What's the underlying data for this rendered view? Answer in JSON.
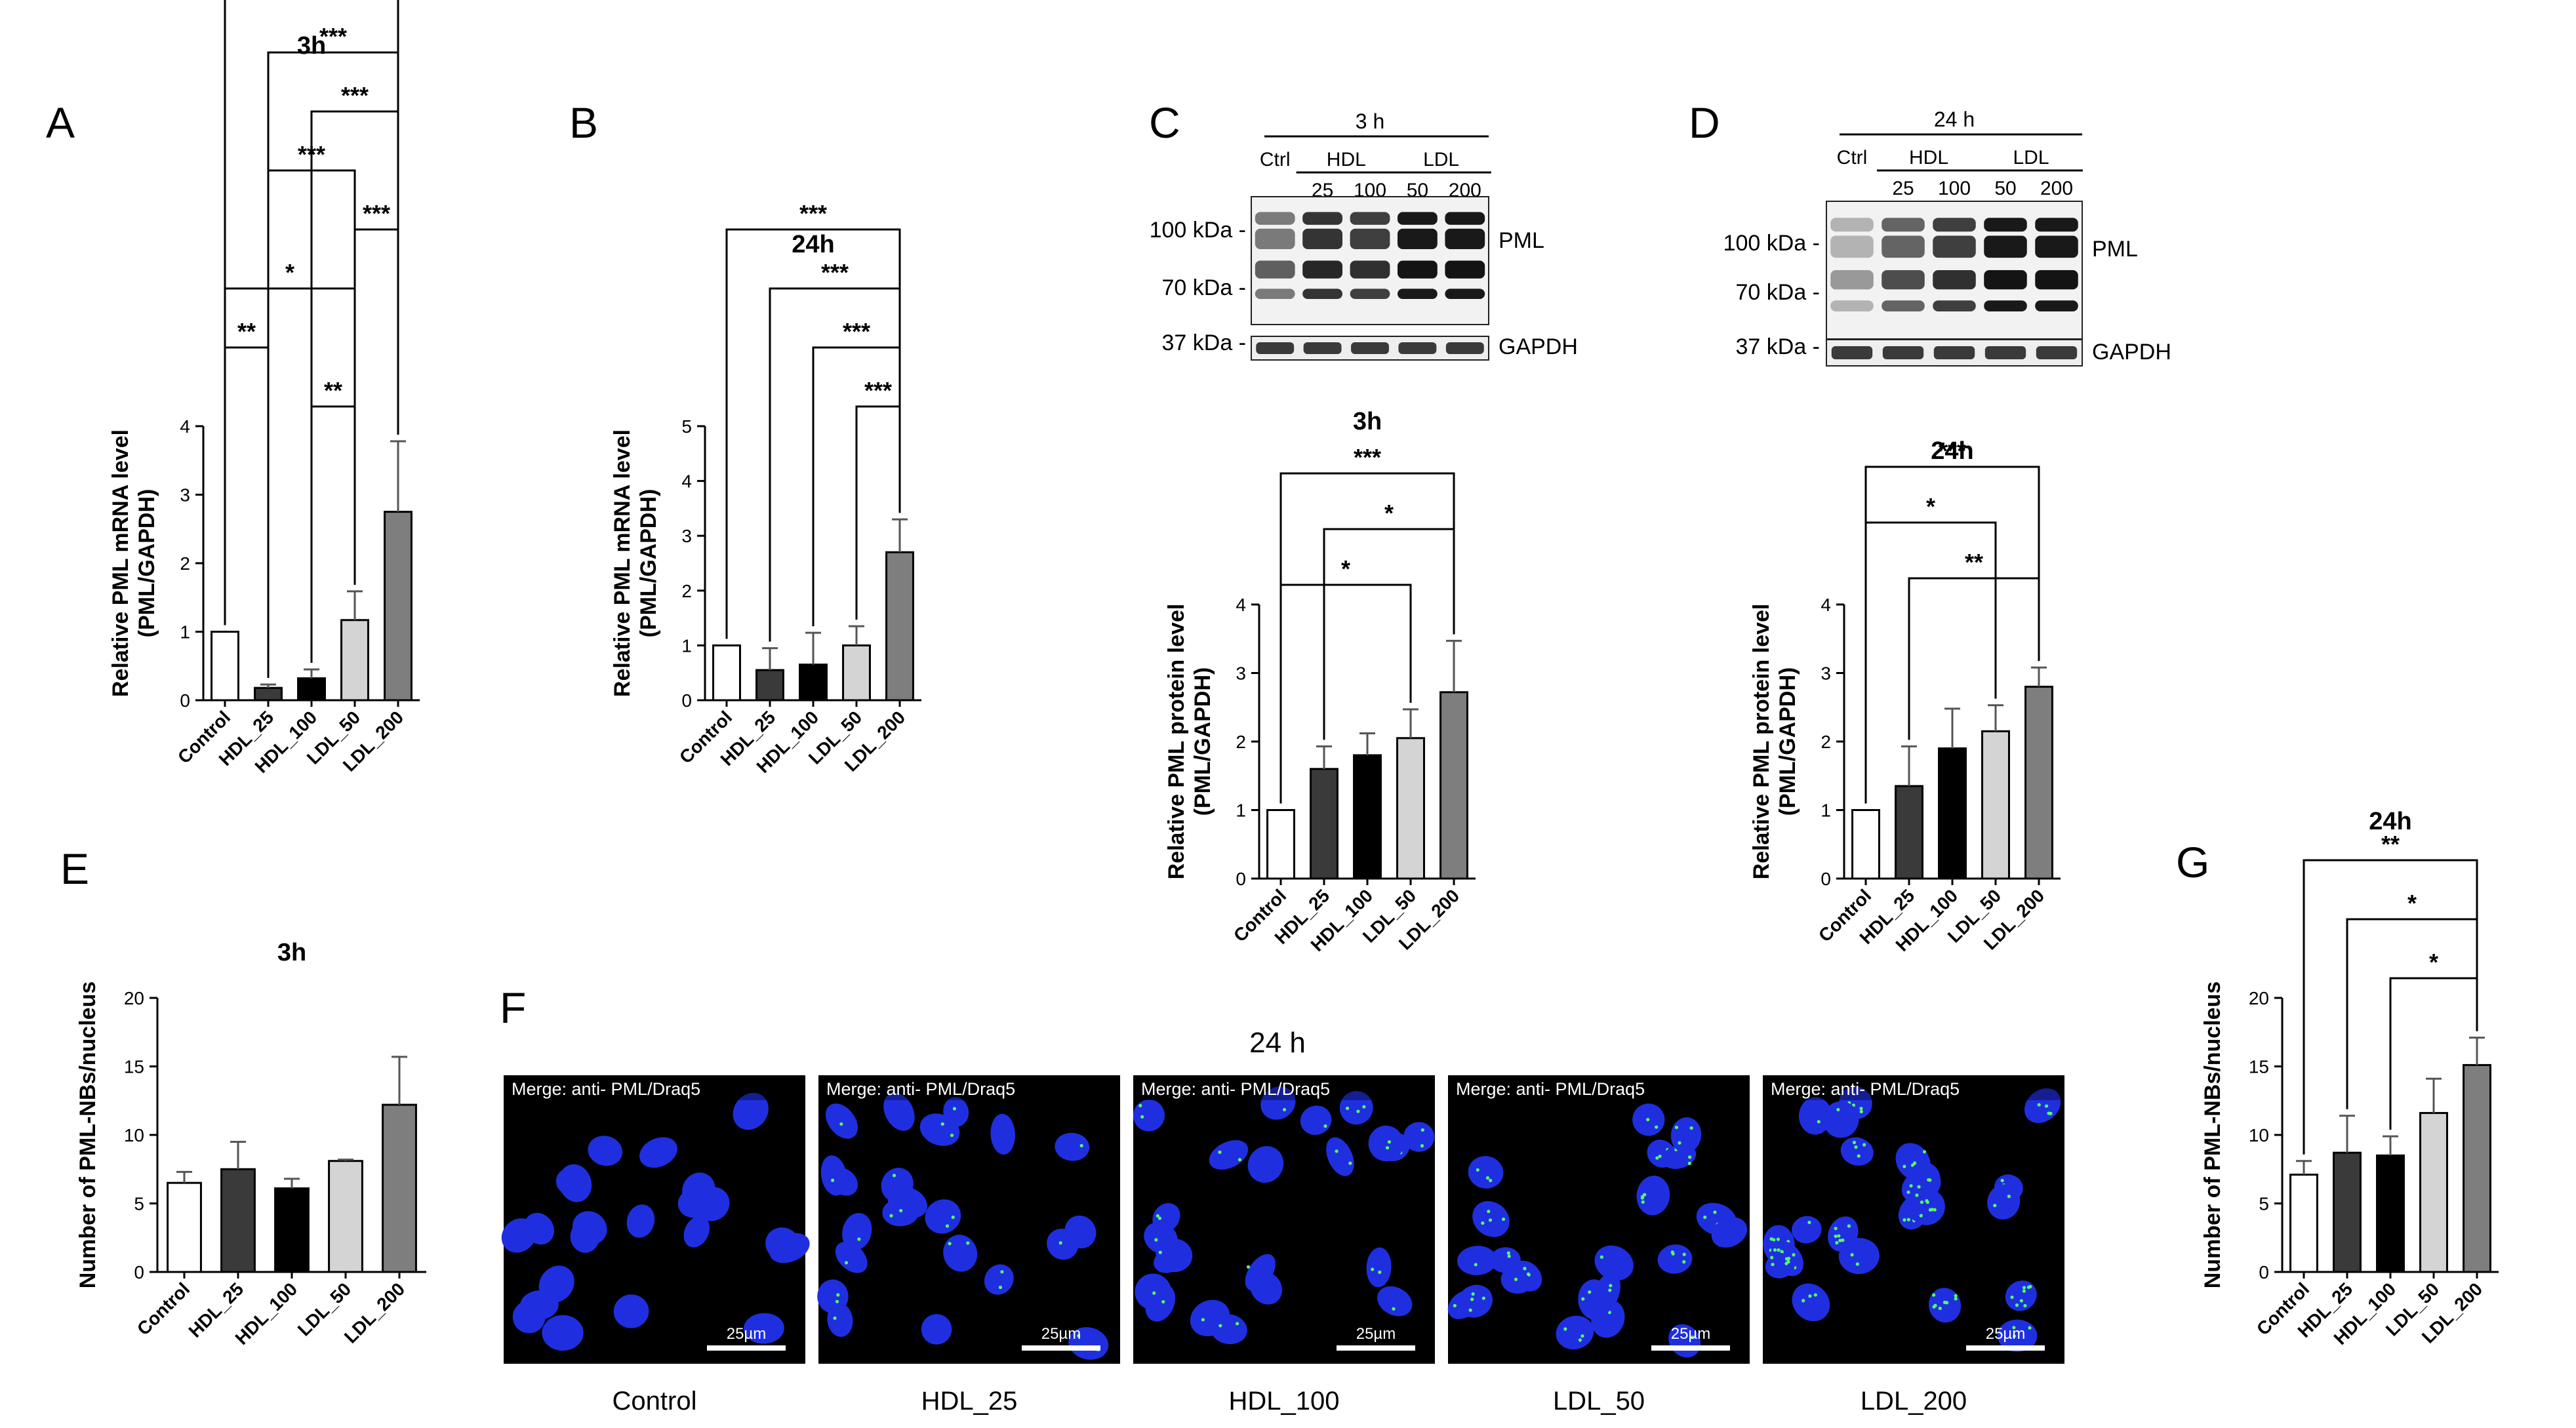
{
  "panel_letters": {
    "A": "A",
    "B": "B",
    "C": "C",
    "D": "D",
    "E": "E",
    "F": "F",
    "G": "G"
  },
  "group_labels": [
    "Control",
    "HDL_25",
    "HDL_100",
    "LDL_50",
    "LDL_200"
  ],
  "bar_colors": [
    "#ffffff",
    "#3a3a3a",
    "#000000",
    "#d4d4d4",
    "#7e7e7e"
  ],
  "western_blots": [
    {
      "panel": "C",
      "time_label": "3 h",
      "ctrl_label": "Ctrl",
      "hdl_label": "HDL",
      "ldl_label": "LDL",
      "doses": [
        "25",
        "100",
        "50",
        "200"
      ],
      "markers": [
        "100 kDa -",
        "70 kDa -",
        "37 kDa -"
      ],
      "pml_label": "PML",
      "gapdh_label": "GAPDH",
      "pml_band_intensity": [
        0.55,
        0.85,
        0.8,
        0.95,
        0.95
      ]
    },
    {
      "panel": "D",
      "time_label": "24 h",
      "ctrl_label": "Ctrl",
      "hdl_label": "HDL",
      "ldl_label": "LDL",
      "doses": [
        "25",
        "100",
        "50",
        "200"
      ],
      "markers": [
        "100 kDa -",
        "70 kDa -",
        "37 kDa -"
      ],
      "pml_label": "PML",
      "gapdh_label": "GAPDH",
      "pml_band_intensity": [
        0.25,
        0.65,
        0.8,
        0.95,
        0.95
      ]
    }
  ],
  "microscopy": {
    "panel": "F",
    "title": "24 h",
    "overlay_text": "Merge: anti- PML/Draq5",
    "scale_label": "25µm",
    "labels": [
      "Control",
      "HDL_25",
      "HDL_100",
      "LDL_50",
      "LDL_200"
    ],
    "pml_density": [
      0.05,
      0.2,
      0.35,
      0.45,
      0.9
    ],
    "nuclei_color": "#1f2fe0",
    "pml_color": "#55ff66"
  },
  "chart_data": [
    {
      "panel": "A",
      "type": "bar",
      "title": "3h",
      "ylabel": [
        "Relative PML mRNA level",
        "(PML/GAPDH)"
      ],
      "categories": [
        "Control",
        "HDL_25",
        "HDL_100",
        "LDL_50",
        "LDL_200"
      ],
      "values": [
        1.0,
        0.18,
        0.32,
        1.17,
        2.75
      ],
      "errors": [
        0,
        0.05,
        0.13,
        0.42,
        1.03
      ],
      "ylim": [
        0,
        4
      ],
      "yticks": [
        0,
        1,
        2,
        3,
        4
      ],
      "significance": [
        {
          "from": 0,
          "to": 4,
          "label": "***"
        },
        {
          "from": 1,
          "to": 4,
          "label": "***"
        },
        {
          "from": 2,
          "to": 4,
          "label": "***"
        },
        {
          "from": 1,
          "to": 3,
          "label": "***"
        },
        {
          "from": 3,
          "to": 4,
          "label": "***"
        },
        {
          "from": 0,
          "to": 3,
          "label": "*"
        },
        {
          "from": 0,
          "to": 1,
          "label": "**"
        },
        {
          "from": 2,
          "to": 3,
          "label": "**"
        }
      ]
    },
    {
      "panel": "B",
      "type": "bar",
      "title": "24h",
      "ylabel": [
        "Relative PML mRNA level",
        "(PML/GAPDH)"
      ],
      "categories": [
        "Control",
        "HDL_25",
        "HDL_100",
        "LDL_50",
        "LDL_200"
      ],
      "values": [
        1.0,
        0.55,
        0.65,
        1.0,
        2.7
      ],
      "errors": [
        0,
        0.4,
        0.58,
        0.35,
        0.6
      ],
      "ylim": [
        0,
        5
      ],
      "yticks": [
        0,
        1,
        2,
        3,
        4,
        5
      ],
      "significance": [
        {
          "from": 0,
          "to": 4,
          "label": "***"
        },
        {
          "from": 1,
          "to": 4,
          "label": "***"
        },
        {
          "from": 2,
          "to": 4,
          "label": "***"
        },
        {
          "from": 3,
          "to": 4,
          "label": "***"
        }
      ]
    },
    {
      "panel": "C",
      "type": "bar",
      "title": "3h",
      "ylabel": [
        "Relative PML protein level",
        "(PML/GAPDH)"
      ],
      "categories": [
        "Control",
        "HDL_25",
        "HDL_100",
        "LDL_50",
        "LDL_200"
      ],
      "values": [
        1.0,
        1.6,
        1.8,
        2.05,
        2.72
      ],
      "errors": [
        0,
        0.33,
        0.32,
        0.42,
        0.75
      ],
      "ylim": [
        0,
        4
      ],
      "yticks": [
        0,
        1,
        2,
        3,
        4
      ],
      "significance": [
        {
          "from": 0,
          "to": 4,
          "label": "***"
        },
        {
          "from": 1,
          "to": 4,
          "label": "*"
        },
        {
          "from": 0,
          "to": 3,
          "label": "*"
        }
      ]
    },
    {
      "panel": "D",
      "type": "bar",
      "title": "24h",
      "ylabel": [
        "Relative PML protein level",
        "(PML/GAPDH)"
      ],
      "categories": [
        "Control",
        "HDL_25",
        "HDL_100",
        "LDL_50",
        "LDL_200"
      ],
      "values": [
        1.0,
        1.35,
        1.9,
        2.15,
        2.8
      ],
      "errors": [
        0,
        0.58,
        0.58,
        0.38,
        0.28
      ],
      "ylim": [
        0,
        4
      ],
      "yticks": [
        0,
        1,
        2,
        3,
        4
      ],
      "significance": [
        {
          "from": 0,
          "to": 4,
          "label": "***"
        },
        {
          "from": 0,
          "to": 3,
          "label": "*"
        },
        {
          "from": 1,
          "to": 4,
          "label": "**"
        }
      ]
    },
    {
      "panel": "E",
      "type": "bar",
      "title": "3h",
      "ylabel": [
        "Number of PML-NBs/nucleus"
      ],
      "categories": [
        "Control",
        "HDL_25",
        "HDL_100",
        "LDL_50",
        "LDL_200"
      ],
      "values": [
        6.5,
        7.5,
        6.1,
        8.1,
        12.2
      ],
      "errors": [
        0.8,
        2.0,
        0.7,
        0.1,
        3.5
      ],
      "ylim": [
        0,
        20
      ],
      "yticks": [
        0,
        5,
        10,
        15,
        20
      ],
      "significance": []
    },
    {
      "panel": "G",
      "type": "bar",
      "title": "24h",
      "ylabel": [
        "Number of PML-NBs/nucleus"
      ],
      "categories": [
        "Control",
        "HDL_25",
        "HDL_100",
        "LDL_50",
        "LDL_200"
      ],
      "values": [
        7.1,
        8.7,
        8.5,
        11.6,
        15.1
      ],
      "errors": [
        1.0,
        2.7,
        1.4,
        2.5,
        2.0
      ],
      "ylim": [
        0,
        20
      ],
      "yticks": [
        0,
        5,
        10,
        15,
        20
      ],
      "significance": [
        {
          "from": 0,
          "to": 4,
          "label": "**"
        },
        {
          "from": 1,
          "to": 4,
          "label": "*"
        },
        {
          "from": 2,
          "to": 4,
          "label": "*"
        }
      ]
    }
  ]
}
